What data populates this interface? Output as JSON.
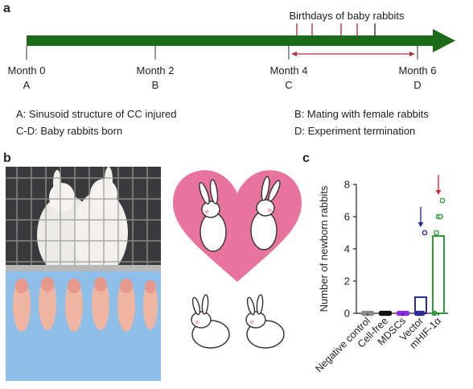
{
  "panel_a": {
    "label": "a",
    "birthdays_label": "Birthdays of baby rabbits",
    "milestones": [
      {
        "month": "Month 0",
        "letter": "A"
      },
      {
        "month": "Month 2",
        "letter": "B"
      },
      {
        "month": "Month 4",
        "letter": "C"
      },
      {
        "month": "Month 6",
        "letter": "D"
      }
    ],
    "legend": [
      "A: Sinusoid structure of CC injured",
      "B: Mating with female rabbits",
      "C-D: Baby rabbits born",
      "D: Experiment termination"
    ],
    "colors": {
      "arrow": "#1a6b1a",
      "birthday_ticks": "#c0304a",
      "range": "#b03040"
    }
  },
  "panel_b": {
    "label": "b"
  },
  "panel_c": {
    "label": "c"
  },
  "chart_data": {
    "type": "bar",
    "ylabel": "Number of newborn rabbits",
    "xlabel": "",
    "ylim": [
      0,
      8
    ],
    "yticks": [
      "0",
      "2",
      "4",
      "6",
      "8"
    ],
    "categories": [
      "Negative control",
      "Cell-free",
      "MDSCs",
      "Vector",
      "mHIF-1α"
    ],
    "values": [
      0,
      0,
      0,
      1,
      4.8
    ],
    "points": [
      [
        0,
        0,
        0,
        0,
        0
      ],
      [
        0,
        0,
        0,
        0,
        0
      ],
      [
        0,
        0,
        0,
        0,
        0
      ],
      [
        0,
        0,
        0,
        0,
        5
      ],
      [
        0,
        5,
        6,
        6,
        7
      ]
    ],
    "colors": [
      "#8a8a8a",
      "#111111",
      "#8a2be2",
      "#2a2a9a",
      "#2e9a3a"
    ],
    "arrows": [
      3,
      4
    ],
    "arrow_colors": [
      "#2a2a9a",
      "#d03040"
    ]
  }
}
